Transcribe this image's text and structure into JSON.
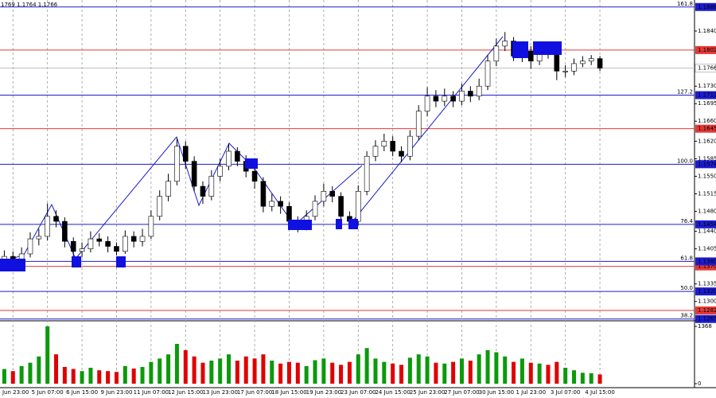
{
  "chart_data": {
    "type": "candlestick",
    "ohlc_text": "1769 1.1764 1.1766",
    "categories": [
      null,
      "3 Jun 23:00",
      null,
      null,
      null,
      "5 Jun 07:00",
      null,
      null,
      null,
      "6 Jun 15:00",
      null,
      null,
      null,
      "9 Jun 23:00",
      null,
      null,
      null,
      "11 Jun 07:00",
      null,
      null,
      null,
      "12 Jun 15:00",
      null,
      null,
      null,
      "13 Jun 23:00",
      null,
      null,
      null,
      "17 Jun 07:00",
      null,
      null,
      null,
      "18 Jun 15:00",
      null,
      null,
      null,
      "19 Jun 23:00",
      null,
      null,
      null,
      "23 Jun 07:00",
      null,
      null,
      null,
      "24 Jun 15:00",
      null,
      null,
      null,
      "25 Jun 23:00",
      null,
      null,
      null,
      "27 Jun 07:00",
      null,
      null,
      null,
      "30 Jun 15:00",
      null,
      null,
      null,
      "1 Jul 23:00",
      null,
      null,
      null,
      "3 Jul 07:00",
      null,
      null,
      null,
      "4 Jul 15:00"
    ],
    "open": [
      1.138,
      1.139,
      1.1385,
      1.1395,
      1.1425,
      1.143,
      1.147,
      1.146,
      1.142,
      1.14,
      1.1405,
      1.1425,
      1.142,
      1.141,
      1.14,
      1.143,
      1.142,
      1.143,
      1.147,
      1.151,
      1.154,
      1.161,
      1.158,
      1.153,
      1.151,
      1.155,
      1.157,
      1.16,
      1.158,
      1.156,
      1.154,
      1.149,
      1.15,
      1.149,
      1.146,
      1.145,
      1.147,
      1.15,
      1.152,
      1.151,
      1.147,
      1.146,
      1.152,
      1.159,
      1.161,
      1.162,
      1.16,
      1.159,
      1.163,
      1.168,
      1.171,
      1.17,
      1.171,
      1.17,
      1.172,
      1.171,
      1.173,
      1.178,
      1.181,
      1.182,
      1.179,
      1.18,
      1.178,
      1.18,
      1.1795,
      1.176,
      1.176,
      1.1775,
      1.178,
      1.1785
    ],
    "high": [
      1.1402,
      1.14,
      1.1408,
      1.1438,
      1.1445,
      1.1496,
      1.1482,
      1.1468,
      1.1428,
      1.1418,
      1.144,
      1.1436,
      1.143,
      1.1418,
      1.1442,
      1.144,
      1.1445,
      1.1482,
      1.1522,
      1.1555,
      1.1625,
      1.162,
      1.159,
      1.154,
      1.1562,
      1.1585,
      1.1615,
      1.1608,
      1.1592,
      1.157,
      1.1548,
      1.1515,
      1.151,
      1.1498,
      1.147,
      1.1482,
      1.1512,
      1.1535,
      1.153,
      1.1518,
      1.148,
      1.1532,
      1.16,
      1.1622,
      1.1635,
      1.163,
      1.161,
      1.1642,
      1.1692,
      1.1728,
      1.1722,
      1.1725,
      1.172,
      1.1735,
      1.173,
      1.1745,
      1.1792,
      1.1825,
      1.1838,
      1.1828,
      1.1815,
      1.181,
      1.1812,
      1.181,
      1.18,
      1.1772,
      1.1785,
      1.179,
      1.1792,
      1.179
    ],
    "low": [
      1.1368,
      1.1372,
      1.1375,
      1.1388,
      1.1412,
      1.1422,
      1.1448,
      1.1408,
      1.139,
      1.1388,
      1.1398,
      1.141,
      1.1398,
      1.1392,
      1.1395,
      1.1408,
      1.141,
      1.1425,
      1.1462,
      1.15,
      1.1532,
      1.1565,
      1.152,
      1.1495,
      1.1502,
      1.154,
      1.1562,
      1.157,
      1.1548,
      1.1525,
      1.1478,
      1.148,
      1.1475,
      1.145,
      1.1438,
      1.1442,
      1.1462,
      1.149,
      1.1498,
      1.1458,
      1.145,
      1.1452,
      1.1512,
      1.158,
      1.16,
      1.159,
      1.1578,
      1.1582,
      1.1622,
      1.167,
      1.1688,
      1.169,
      1.1688,
      1.1692,
      1.1698,
      1.1702,
      1.1722,
      1.177,
      1.18,
      1.178,
      1.1778,
      1.1765,
      1.1772,
      1.1785,
      1.1742,
      1.1748,
      1.1752,
      1.1768,
      1.1772,
      1.176
    ],
    "close": [
      1.139,
      1.1385,
      1.1395,
      1.1425,
      1.143,
      1.147,
      1.146,
      1.142,
      1.14,
      1.1405,
      1.1425,
      1.142,
      1.141,
      1.14,
      1.143,
      1.142,
      1.143,
      1.147,
      1.151,
      1.154,
      1.161,
      1.158,
      1.153,
      1.151,
      1.155,
      1.157,
      1.16,
      1.158,
      1.156,
      1.154,
      1.149,
      1.15,
      1.149,
      1.146,
      1.145,
      1.147,
      1.15,
      1.152,
      1.151,
      1.147,
      1.146,
      1.152,
      1.159,
      1.161,
      1.162,
      1.16,
      1.159,
      1.163,
      1.168,
      1.171,
      1.17,
      1.171,
      1.17,
      1.172,
      1.171,
      1.173,
      1.178,
      1.181,
      1.182,
      1.179,
      1.18,
      1.178,
      1.18,
      1.1795,
      1.176,
      1.176,
      1.1775,
      1.178,
      1.1785,
      1.1766
    ],
    "up_color": "#ffffff",
    "down_color": "#000000",
    "candle_stroke": "#000000",
    "ylim": [
      1.1263,
      1.1902
    ],
    "yticks": [
      {
        "value": 1.184,
        "label": "1.1840"
      },
      {
        "value": 1.173,
        "label": "1.1730"
      },
      1.1695,
      {
        "value": 1.166,
        "label": "1.1660"
      },
      {
        "value": 1.162,
        "label": "1.1620"
      },
      1.1585,
      {
        "value": 1.155,
        "label": "1.1550"
      },
      1.1515,
      {
        "value": 1.148,
        "label": "1.1480"
      },
      {
        "value": 1.144,
        "label": "1.1440"
      },
      1.1405,
      1.1335,
      {
        "value": 1.13,
        "label": "1.1300"
      }
    ],
    "levels": [
      {
        "value": 1.1888,
        "label": "1.1888",
        "fib": "161.8",
        "color": "#1c1cd0"
      },
      {
        "value": 1.1802,
        "label": "1.1802",
        "color": "#e53935"
      },
      {
        "value": 1.1712,
        "label": "1.1712",
        "fib": "127.2",
        "color": "#1c1cd0"
      },
      {
        "value": 1.1645,
        "label": "1.1645",
        "color": "#e53935"
      },
      {
        "value": 1.1574,
        "label": "1.1574",
        "fib": "100.0",
        "color": "#1c1cd0"
      },
      {
        "value": 1.1454,
        "label": "1.1454",
        "fib": "76.4",
        "color": "#1c1cd0"
      },
      {
        "value": 1.137,
        "label": "1.1370",
        "color": "#e53935"
      },
      {
        "value": 1.138,
        "label": "1.1380",
        "fib": "61.8",
        "color": "#1c1cd0"
      },
      {
        "value": 1.132,
        "label": "1.1320",
        "fib": "50.0",
        "color": "#1c1cd0"
      },
      {
        "value": 1.1282,
        "label": "1.1282",
        "color": "#e53935"
      },
      {
        "value": 1.1265,
        "label": "1.1265",
        "fib": "38.2",
        "color": "#1c1cd0"
      }
    ],
    "current": {
      "value": 1.1766,
      "label": "1.1766",
      "color": "#c0c0c0"
    },
    "volume": {
      "values": [
        350,
        300,
        420,
        500,
        650,
        1368,
        700,
        400,
        350,
        300,
        380,
        320,
        300,
        280,
        420,
        360,
        400,
        520,
        600,
        700,
        950,
        800,
        650,
        500,
        550,
        600,
        700,
        550,
        650,
        600,
        700,
        550,
        480,
        520,
        500,
        420,
        560,
        600,
        500,
        450,
        520,
        700,
        850,
        600,
        520,
        480,
        450,
        620,
        700,
        650,
        500,
        480,
        520,
        600,
        550,
        700,
        800,
        750,
        650,
        520,
        600,
        500,
        480,
        450,
        520,
        380,
        320,
        260,
        250,
        220
      ],
      "ylim": [
        0,
        1368
      ],
      "yticks": [
        1368,
        0
      ],
      "up_color": "#0a9a0a",
      "down_color": "#e00000"
    }
  }
}
